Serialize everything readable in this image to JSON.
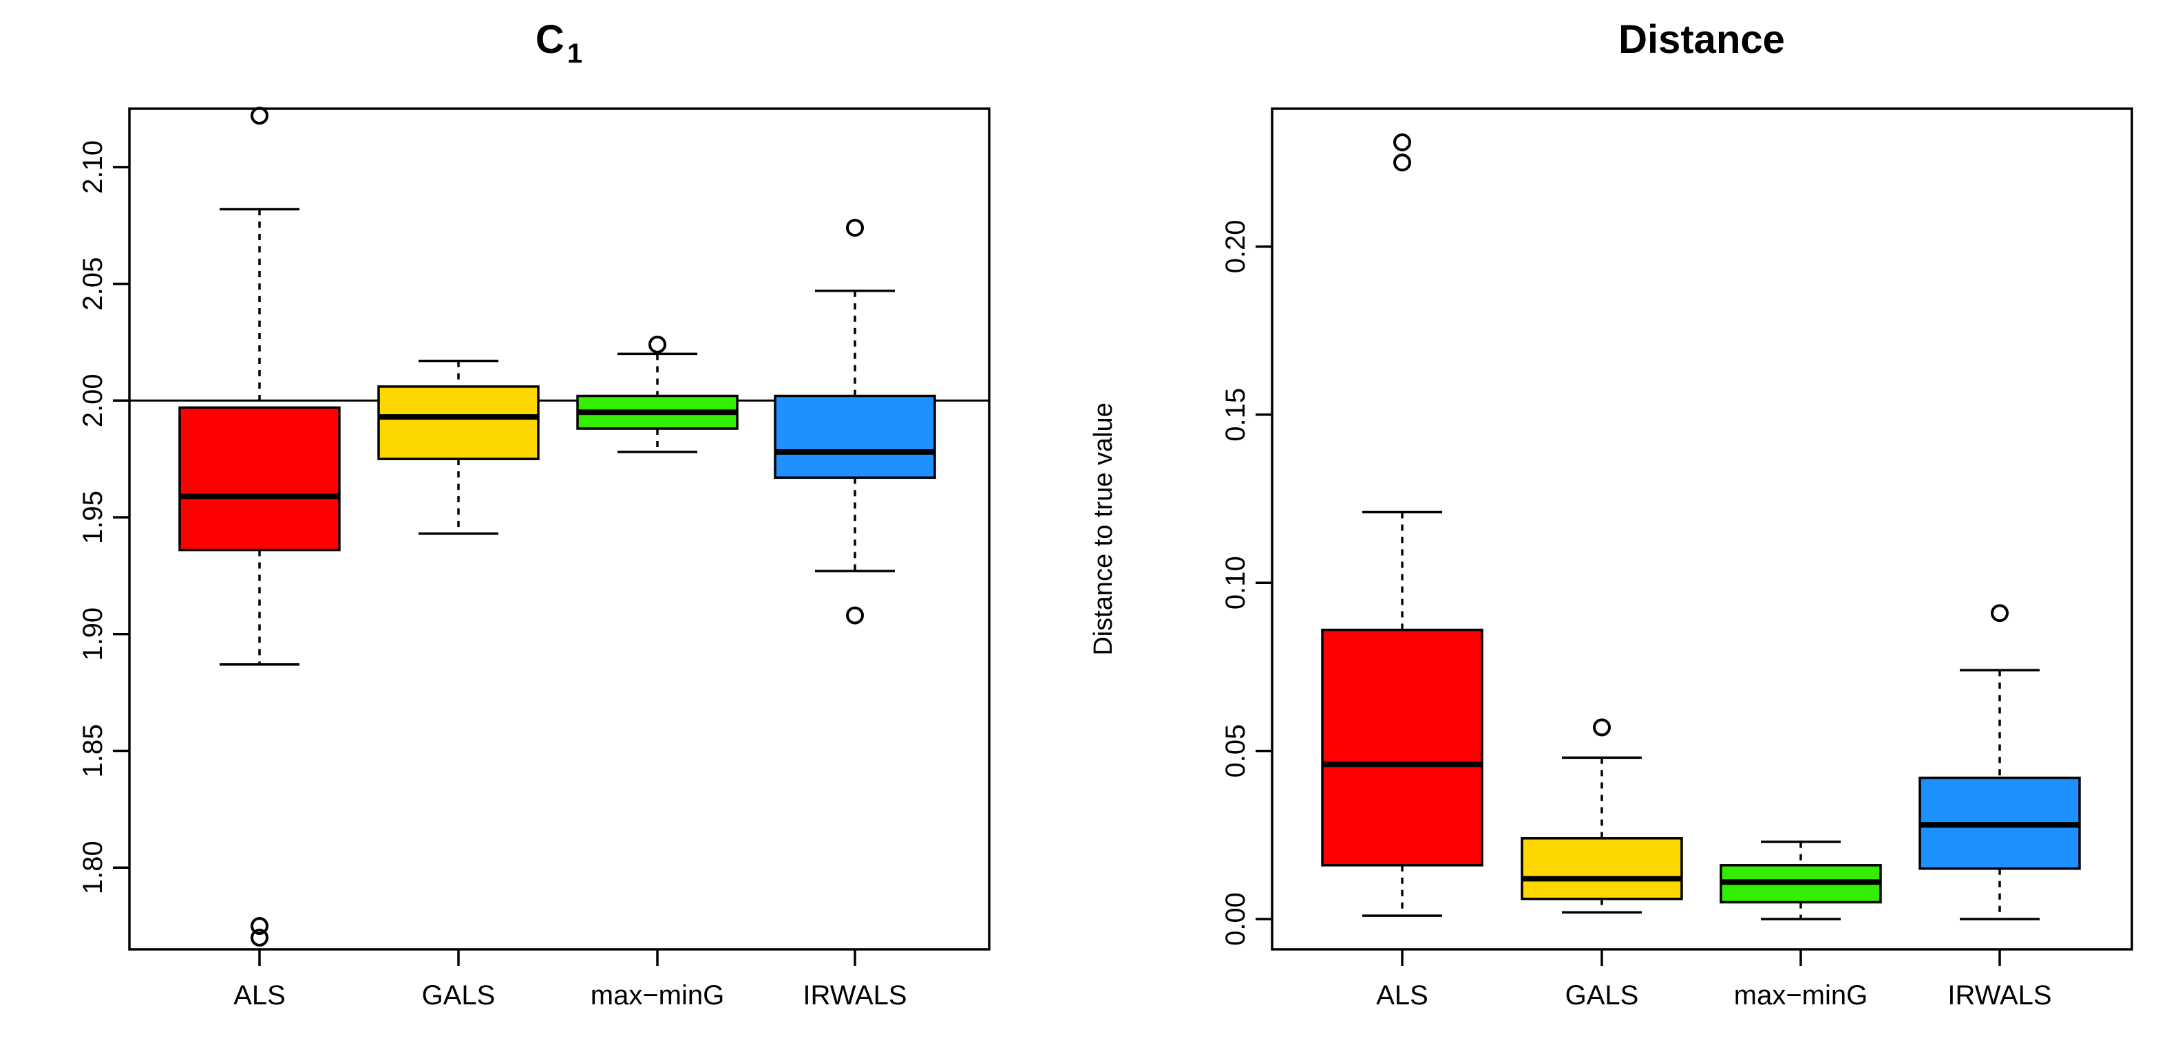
{
  "chart_data": [
    {
      "type": "boxplot",
      "title": "C",
      "title_subscript": "1",
      "xlabel": "",
      "ylabel": "",
      "ylim": [
        1.765,
        2.125
      ],
      "yticks": [
        1.8,
        1.85,
        1.9,
        1.95,
        2.0,
        2.05,
        2.1
      ],
      "ytick_labels": [
        "1.80",
        "1.85",
        "1.90",
        "1.95",
        "2.00",
        "2.05",
        "2.10"
      ],
      "reference_line": 2.0,
      "categories": [
        "ALS",
        "GALS",
        "max−minG",
        "IRWALS"
      ],
      "boxes": [
        {
          "name": "ALS",
          "color": "#FF0000",
          "lower_whisker": 1.887,
          "q1": 1.936,
          "median": 1.959,
          "q3": 1.997,
          "upper_whisker": 2.082,
          "outliers": [
            2.122,
            1.77,
            1.775
          ]
        },
        {
          "name": "GALS",
          "color": "#FFD700",
          "lower_whisker": 1.943,
          "q1": 1.975,
          "median": 1.993,
          "q3": 2.006,
          "upper_whisker": 2.017,
          "outliers": []
        },
        {
          "name": "max−minG",
          "color": "#33EE00",
          "lower_whisker": 1.978,
          "q1": 1.988,
          "median": 1.995,
          "q3": 2.002,
          "upper_whisker": 2.02,
          "outliers": [
            2.024
          ]
        },
        {
          "name": "IRWALS",
          "color": "#1E90FF",
          "lower_whisker": 1.927,
          "q1": 1.967,
          "median": 1.978,
          "q3": 2.002,
          "upper_whisker": 2.047,
          "outliers": [
            2.074,
            1.908
          ]
        }
      ]
    },
    {
      "type": "boxplot",
      "title": "Distance",
      "title_subscript": "",
      "xlabel": "",
      "ylabel": "Distance to true value",
      "ylim": [
        -0.009,
        0.241
      ],
      "yticks": [
        0.0,
        0.05,
        0.1,
        0.15,
        0.2
      ],
      "ytick_labels": [
        "0.00",
        "0.05",
        "0.10",
        "0.15",
        "0.20"
      ],
      "reference_line": null,
      "categories": [
        "ALS",
        "GALS",
        "max−minG",
        "IRWALS"
      ],
      "boxes": [
        {
          "name": "ALS",
          "color": "#FF0000",
          "lower_whisker": 0.001,
          "q1": 0.016,
          "median": 0.046,
          "q3": 0.086,
          "upper_whisker": 0.121,
          "outliers": [
            0.231,
            0.225
          ]
        },
        {
          "name": "GALS",
          "color": "#FFD700",
          "lower_whisker": 0.002,
          "q1": 0.006,
          "median": 0.012,
          "q3": 0.024,
          "upper_whisker": 0.048,
          "outliers": [
            0.057
          ]
        },
        {
          "name": "max−minG",
          "color": "#33EE00",
          "lower_whisker": 0.0,
          "q1": 0.005,
          "median": 0.011,
          "q3": 0.016,
          "upper_whisker": 0.023,
          "outliers": []
        },
        {
          "name": "IRWALS",
          "color": "#1E90FF",
          "lower_whisker": 0.0,
          "q1": 0.015,
          "median": 0.028,
          "q3": 0.042,
          "upper_whisker": 0.074,
          "outliers": [
            0.091
          ]
        }
      ]
    }
  ]
}
